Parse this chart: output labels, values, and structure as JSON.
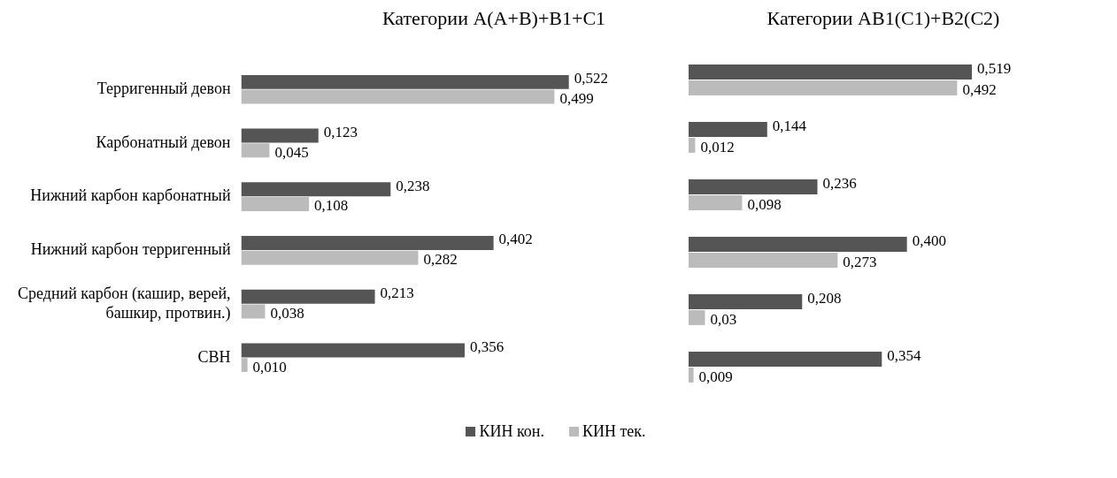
{
  "chart_data": [
    {
      "type": "bar",
      "orientation": "horizontal",
      "title": "Категории A(A+B)+B1+C1",
      "categories": [
        "Терригенный девон",
        "Карбонатный девон",
        "Нижний карбон карбонатный",
        "Нижний карбон терригенный",
        "Средний карбон (кашир, верей, башкир, протвин.)",
        "СВН"
      ],
      "series": [
        {
          "name": "КИН кон.",
          "color": "#555555",
          "values": [
            0.522,
            0.123,
            0.238,
            0.402,
            0.213,
            0.356
          ],
          "value_labels": [
            "0,522",
            "0,123",
            "0,238",
            "0,402",
            "0,213",
            "0,356"
          ]
        },
        {
          "name": "КИН тек.",
          "color": "#bbbbbb",
          "values": [
            0.499,
            0.045,
            0.108,
            0.282,
            0.038,
            0.01
          ],
          "value_labels": [
            "0,499",
            "0,045",
            "0,108",
            "0,282",
            "0,038",
            "0,010"
          ]
        }
      ],
      "legend": "bottom",
      "tick_labels": "y"
    },
    {
      "type": "bar",
      "orientation": "horizontal",
      "title": "Категории AB1(C1)+B2(C2)",
      "categories": [
        null,
        null,
        null,
        null,
        null,
        null
      ],
      "series": [
        {
          "color": "#555555",
          "values": [
            0.519,
            0.144,
            0.236,
            0.4,
            0.208,
            0.354
          ],
          "value_labels": [
            "0,519",
            "0,144",
            "0,236",
            "0,400",
            "0,208",
            "0,354"
          ]
        },
        {
          "color": "#bbbbbb",
          "values": [
            0.492,
            0.012,
            0.098,
            0.273,
            0.03,
            0.009
          ],
          "value_labels": [
            "0,492",
            "0,012",
            "0,098",
            "0,273",
            "0,03",
            "0,009"
          ]
        }
      ],
      "tick_labels": false
    }
  ]
}
